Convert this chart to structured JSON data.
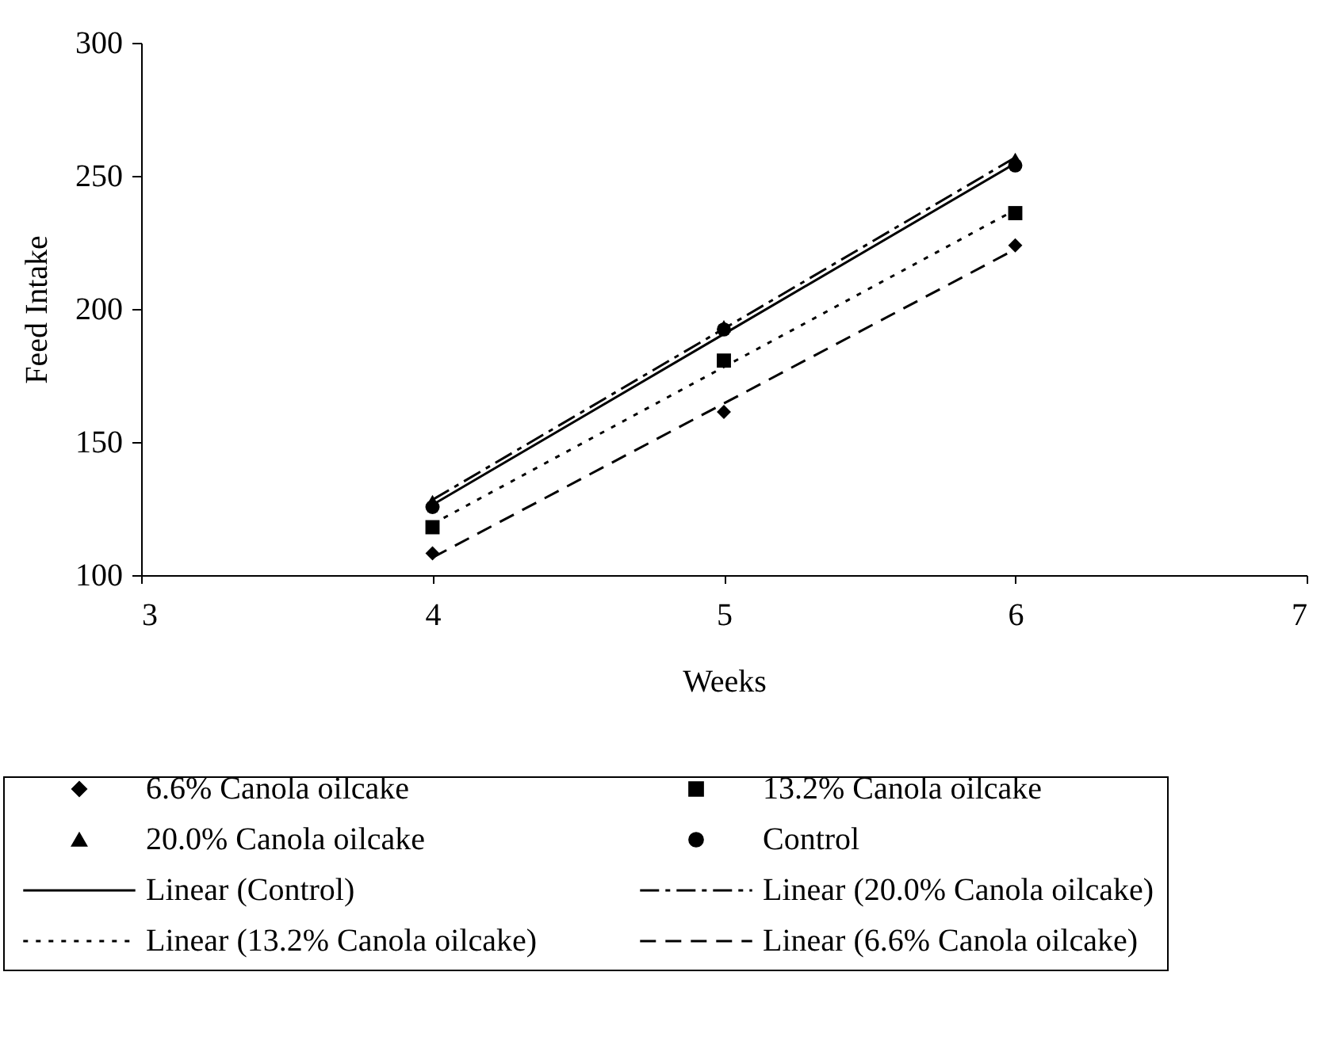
{
  "chart_data": {
    "type": "scatter",
    "xlabel": "Weeks",
    "ylabel": "Feed Intake",
    "x": [
      4,
      5,
      6
    ],
    "series": [
      {
        "name": "6.6% Canola oilcake",
        "type": "scatter",
        "marker": "diamond",
        "color": "#000000",
        "values": [
          108.2,
          161.3,
          223.9
        ]
      },
      {
        "name": "13.2% Canola oilcake",
        "type": "scatter",
        "marker": "square",
        "color": "#000000",
        "values": [
          118,
          180.6,
          236
        ]
      },
      {
        "name": "20.0% Canola oilcake",
        "type": "scatter",
        "marker": "triangle",
        "color": "#000000",
        "values": [
          127.8,
          193.5,
          256.4
        ]
      },
      {
        "name": "Control",
        "type": "scatter",
        "marker": "circle",
        "color": "#000000",
        "values": [
          125.6,
          192.3,
          253.9
        ]
      },
      {
        "name": "Linear (Control)",
        "type": "line",
        "line_style": "solid",
        "color": "#000000",
        "values": [
          126.4,
          190.6,
          254.7
        ]
      },
      {
        "name": "Linear (20.0% Canola oilcake)",
        "type": "line",
        "line_style": "dashdot",
        "color": "#000000",
        "values": [
          128.3,
          192.6,
          256.9
        ]
      },
      {
        "name": "Linear (13.2% Canola oilcake)",
        "type": "line",
        "line_style": "dotted",
        "color": "#000000",
        "values": [
          119.2,
          178.2,
          237.2
        ]
      },
      {
        "name": "Linear (6.6% Canola oilcake)",
        "type": "line",
        "line_style": "dashed",
        "color": "#000000",
        "values": [
          106.6,
          164.5,
          222.4
        ]
      }
    ],
    "xlim": [
      3,
      7
    ],
    "xticks": [
      3,
      4,
      5,
      6,
      7
    ],
    "ylim": [
      100,
      300
    ],
    "yticks": [
      100,
      150,
      200,
      250,
      300
    ],
    "legend": "bottom"
  }
}
